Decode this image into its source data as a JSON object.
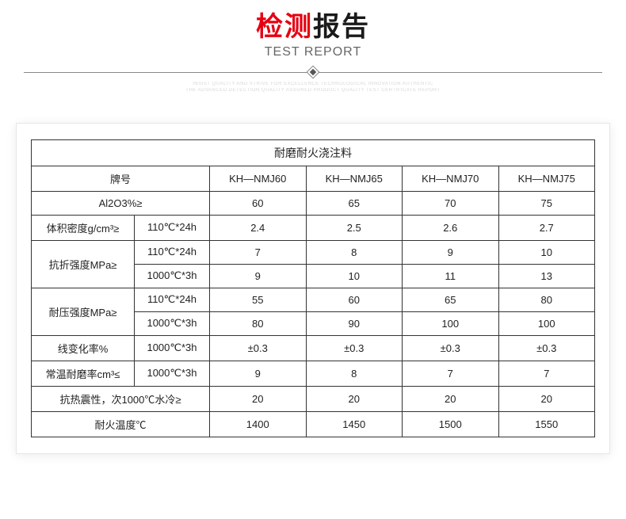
{
  "header": {
    "title_cn_red": "检测",
    "title_cn_dark": "报告",
    "title_en": "TEST REPORT",
    "decor_line1": "INSIST QUALITY AND STRIVE FOR EXCELLENCE TECHNOLOGICAL INNOVATION AUTHENTIC",
    "decor_line2": "THE ADVANCED DETECTION QUALITY ASSURED PRODUCT QUALITY TEST CERTIFICATE REPORT"
  },
  "table": {
    "title": "耐磨耐火浇注料",
    "grade_label": "牌号",
    "columns": [
      "KH—NMJ60",
      "KH—NMJ65",
      "KH—NMJ70",
      "KH—NMJ75"
    ],
    "rows": [
      {
        "label": "Al2O3%≥",
        "cond": null,
        "values": [
          "60",
          "65",
          "70",
          "75"
        ]
      },
      {
        "label": "体积密度g/cm³≥",
        "cond": "110℃*24h",
        "values": [
          "2.4",
          "2.5",
          "2.6",
          "2.7"
        ]
      },
      {
        "label": "抗折强度MPa≥",
        "cond": "110℃*24h",
        "values": [
          "7",
          "8",
          "9",
          "10"
        ],
        "rowspan": 2
      },
      {
        "cond": "1000℃*3h",
        "values": [
          "9",
          "10",
          "11",
          "13"
        ]
      },
      {
        "label": "耐压强度MPa≥",
        "cond": "110℃*24h",
        "values": [
          "55",
          "60",
          "65",
          "80"
        ],
        "rowspan": 2
      },
      {
        "cond": "1000℃*3h",
        "values": [
          "80",
          "90",
          "100",
          "100"
        ]
      },
      {
        "label": "线变化率%",
        "cond": "1000℃*3h",
        "values": [
          "±0.3",
          "±0.3",
          "±0.3",
          "±0.3"
        ]
      },
      {
        "label": "常温耐磨率cm³≤",
        "cond": "1000℃*3h",
        "values": [
          "9",
          "8",
          "7",
          "7"
        ]
      },
      {
        "label": "抗热震性，次1000℃水冷≥",
        "cond": null,
        "values": [
          "20",
          "20",
          "20",
          "20"
        ]
      },
      {
        "label": "耐火温度℃",
        "cond": null,
        "values": [
          "1400",
          "1450",
          "1500",
          "1550"
        ]
      }
    ]
  },
  "style": {
    "accent_red": "#e60012",
    "border_color": "#333333",
    "background": "#ffffff",
    "font_size_table": 13
  }
}
